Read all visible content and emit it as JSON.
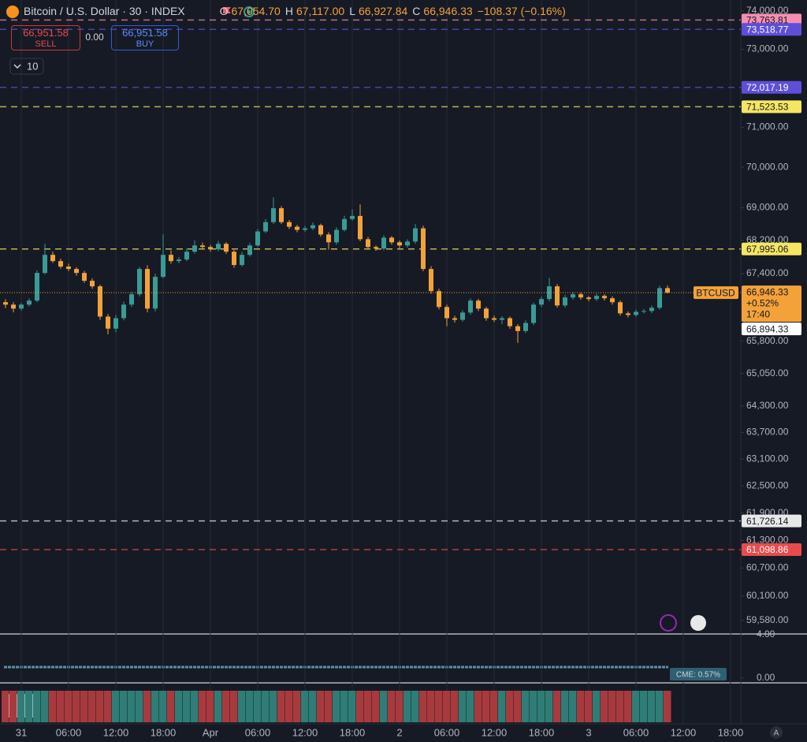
{
  "chart_data": {
    "type": "candlestick",
    "title": "Bitcoin / U.S. Dollar · 30 · INDEX",
    "legend_values": [
      {
        "label": "O",
        "value": "67,054.70"
      },
      {
        "label": "H",
        "value": "67,117.00"
      },
      {
        "label": "L",
        "value": "66,927.84"
      },
      {
        "label": "C",
        "value": "66,946.33"
      }
    ],
    "change": "−108.37 (−0.16%)",
    "log_scale": true,
    "grid": "x",
    "xlim": [
      -2.7,
      91.3
    ],
    "xticks": [
      {
        "value": 0,
        "label": "31"
      },
      {
        "value": 6,
        "label": "06:00"
      },
      {
        "value": 12,
        "label": "12:00"
      },
      {
        "value": 18,
        "label": "18:00"
      },
      {
        "value": 24,
        "label": "Apr"
      },
      {
        "value": 30,
        "label": "06:00"
      },
      {
        "value": 36,
        "label": "12:00"
      },
      {
        "value": 42,
        "label": "18:00"
      },
      {
        "value": 48,
        "label": "2"
      },
      {
        "value": 54,
        "label": "06:00"
      },
      {
        "value": 60,
        "label": "12:00"
      },
      {
        "value": 66,
        "label": "18:00"
      },
      {
        "value": 72,
        "label": "3"
      },
      {
        "value": 78,
        "label": "06:00"
      },
      {
        "value": 84,
        "label": "12:00"
      },
      {
        "value": 90,
        "label": "18:00"
      }
    ],
    "ylim": [
      59310,
      74290
    ],
    "yticks": [
      {
        "value": 74000,
        "label": "74,000.00"
      },
      {
        "value": 73000,
        "label": "73,000.00"
      },
      {
        "value": 71000,
        "label": "71,000.00"
      },
      {
        "value": 70000,
        "label": "70,000.00"
      },
      {
        "value": 69000,
        "label": "69,000.00"
      },
      {
        "value": 68200,
        "label": "68,200.00"
      },
      {
        "value": 67400,
        "label": "67,400.00"
      },
      {
        "value": 65800,
        "label": "65,800.00"
      },
      {
        "value": 65050,
        "label": "65,050.00"
      },
      {
        "value": 64300,
        "label": "64,300.00"
      },
      {
        "value": 63700,
        "label": "63,700.00"
      },
      {
        "value": 63100,
        "label": "63,100.00"
      },
      {
        "value": 62500,
        "label": "62,500.00"
      },
      {
        "value": 61900,
        "label": "61,900.00"
      },
      {
        "value": 61300,
        "label": "61,300.00"
      },
      {
        "value": 60700,
        "label": "60,700.00"
      },
      {
        "value": 60100,
        "label": "60,100.00"
      },
      {
        "value": 59580,
        "label": "59,580.00"
      }
    ],
    "series": [
      {
        "name": "BTCUSD",
        "up_color": "#3a9b96",
        "down_color": "#f3a23a",
        "x": [
          -2,
          -1,
          0,
          1,
          2,
          3,
          4,
          5,
          6,
          7,
          8,
          9,
          10,
          11,
          12,
          13,
          14,
          15,
          16,
          17,
          18,
          19,
          20,
          21,
          22,
          23,
          24,
          25,
          26,
          27,
          28,
          29,
          30,
          31,
          32,
          33,
          34,
          35,
          36,
          37,
          38,
          39,
          40,
          41,
          42,
          43,
          44,
          45,
          46,
          47,
          48,
          49,
          50,
          51,
          52,
          53,
          54,
          55,
          56,
          57,
          58,
          59,
          60,
          61,
          62,
          63,
          64,
          65,
          66,
          67,
          68,
          69,
          70,
          71,
          72,
          73,
          74,
          75,
          76,
          77,
          78,
          79,
          80,
          81,
          82
        ],
        "ohlc": [
          [
            66720,
            66790,
            66580,
            66662
          ],
          [
            66662,
            66720,
            66480,
            66568
          ],
          [
            66568,
            66700,
            66520,
            66662
          ],
          [
            66662,
            66810,
            66620,
            66757
          ],
          [
            66757,
            67480,
            66720,
            67418
          ],
          [
            67418,
            68120,
            67380,
            67853
          ],
          [
            67853,
            67930,
            67660,
            67702
          ],
          [
            67702,
            67760,
            67520,
            67570
          ],
          [
            67570,
            67640,
            67460,
            67513
          ],
          [
            67513,
            67560,
            67350,
            67418
          ],
          [
            67418,
            67470,
            67180,
            67230
          ],
          [
            67230,
            67290,
            67040,
            67097
          ],
          [
            67097,
            67140,
            66300,
            66379
          ],
          [
            66379,
            66440,
            65960,
            66095
          ],
          [
            66095,
            66420,
            66010,
            66341
          ],
          [
            66341,
            66730,
            66290,
            66662
          ],
          [
            66662,
            66960,
            66600,
            66908
          ],
          [
            66908,
            67560,
            66850,
            67513
          ],
          [
            67513,
            67600,
            66480,
            66568
          ],
          [
            66568,
            67400,
            66500,
            67324
          ],
          [
            67324,
            68350,
            67290,
            67853
          ],
          [
            67853,
            67960,
            67640,
            67702
          ],
          [
            67702,
            67800,
            67650,
            67740
          ],
          [
            67740,
            68010,
            67700,
            67929
          ],
          [
            67929,
            68200,
            67880,
            68080
          ],
          [
            68080,
            68150,
            67990,
            68042
          ],
          [
            68042,
            68090,
            67930,
            67986
          ],
          [
            67986,
            68190,
            67940,
            68118
          ],
          [
            68118,
            68160,
            67870,
            67929
          ],
          [
            67929,
            67970,
            67540,
            67608
          ],
          [
            67608,
            67920,
            67570,
            67853
          ],
          [
            67853,
            68140,
            67810,
            68080
          ],
          [
            68080,
            68480,
            68040,
            68420
          ],
          [
            68420,
            68720,
            68380,
            68647
          ],
          [
            68647,
            69250,
            68600,
            68987
          ],
          [
            68987,
            69040,
            68600,
            68647
          ],
          [
            68647,
            68700,
            68480,
            68534
          ],
          [
            68534,
            68580,
            68400,
            68458
          ],
          [
            68458,
            68560,
            68410,
            68496
          ],
          [
            68496,
            68640,
            68450,
            68571
          ],
          [
            68571,
            68610,
            68290,
            68345
          ],
          [
            68345,
            68400,
            67980,
            68156
          ],
          [
            68156,
            68520,
            68100,
            68458
          ],
          [
            68458,
            68800,
            68420,
            68723
          ],
          [
            68723,
            68960,
            68680,
            68798
          ],
          [
            68798,
            69080,
            68180,
            68231
          ],
          [
            68231,
            68290,
            67980,
            68042
          ],
          [
            68042,
            68080,
            67950,
            68004
          ],
          [
            68004,
            68330,
            67960,
            68269
          ],
          [
            68269,
            68310,
            68100,
            68156
          ],
          [
            68156,
            68200,
            67990,
            68080
          ],
          [
            68080,
            68230,
            68030,
            68175
          ],
          [
            68175,
            68600,
            68120,
            68496
          ],
          [
            68496,
            68560,
            67460,
            67513
          ],
          [
            67513,
            67580,
            66920,
            66984
          ],
          [
            66984,
            67040,
            66550,
            66606
          ],
          [
            66606,
            66660,
            66150,
            66341
          ],
          [
            66341,
            66400,
            66240,
            66303
          ],
          [
            66303,
            66530,
            66260,
            66474
          ],
          [
            66474,
            66810,
            66420,
            66757
          ],
          [
            66757,
            66800,
            66510,
            66568
          ],
          [
            66568,
            66610,
            66280,
            66341
          ],
          [
            66341,
            66400,
            66250,
            66303
          ],
          [
            66303,
            66390,
            66200,
            66341
          ],
          [
            66341,
            66380,
            66090,
            66152
          ],
          [
            66152,
            66200,
            65760,
            66039
          ],
          [
            66039,
            66290,
            65990,
            66228
          ],
          [
            66228,
            66710,
            66180,
            66662
          ],
          [
            66662,
            66850,
            66600,
            66795
          ],
          [
            66795,
            67300,
            66740,
            67097
          ],
          [
            67097,
            67150,
            66590,
            66643
          ],
          [
            66643,
            66890,
            66590,
            66832
          ],
          [
            66832,
            66960,
            66780,
            66908
          ],
          [
            66908,
            66950,
            66780,
            66832
          ],
          [
            66832,
            66870,
            66740,
            66795
          ],
          [
            66795,
            66920,
            66750,
            66870
          ],
          [
            66870,
            66910,
            66760,
            66813
          ],
          [
            66813,
            66860,
            66660,
            66719
          ],
          [
            66719,
            66760,
            66400,
            66455
          ],
          [
            66455,
            66500,
            66360,
            66417
          ],
          [
            66417,
            66550,
            66370,
            66492
          ],
          [
            66492,
            66560,
            66450,
            66511
          ],
          [
            66511,
            66640,
            66460,
            66587
          ],
          [
            66587,
            67110,
            66540,
            67054.7
          ],
          [
            67054.7,
            67117,
            66927.84,
            66946.33
          ]
        ]
      }
    ],
    "price_lines": [
      {
        "value": 73763.81,
        "label": "73,763.81",
        "color": "#f48fb1"
      },
      {
        "value": 73518.77,
        "label": "73,518.77",
        "color": "#5e4fd8"
      },
      {
        "value": 72017.19,
        "label": "72,017.19",
        "color": "#5e4fd8"
      },
      {
        "value": 71523.53,
        "label": "71,523.53",
        "color": "#f5e663"
      },
      {
        "value": 67995.06,
        "label": "67,995.06",
        "color": "#f5e663"
      },
      {
        "value": 61726.14,
        "label": "61,726.14",
        "color": "#e8e8e8"
      },
      {
        "value": 61098.86,
        "label": "61,098.86",
        "color": "#e84b4b"
      }
    ],
    "last_price": {
      "value": 66946.33,
      "label": "66,946.33",
      "change": "+0.52%",
      "countdown": "17:40",
      "color": "#f3a23a"
    },
    "bid_label": {
      "value": 66894.33,
      "label": "66,894.33"
    },
    "indicator": {
      "yticks": [
        {
          "value": 4,
          "label": "4.00"
        },
        {
          "value": 0,
          "label": "0.00"
        }
      ],
      "ylim": [
        -0.45,
        4
      ],
      "label": "CME: 0.57%"
    }
  },
  "order_panel": {
    "sell_price": "66,951.58",
    "sell": "SELL",
    "spread": "0.00",
    "buy_price": "66,951.58",
    "buy": "BUY",
    "quantity": "10"
  },
  "scale_mode": "A"
}
